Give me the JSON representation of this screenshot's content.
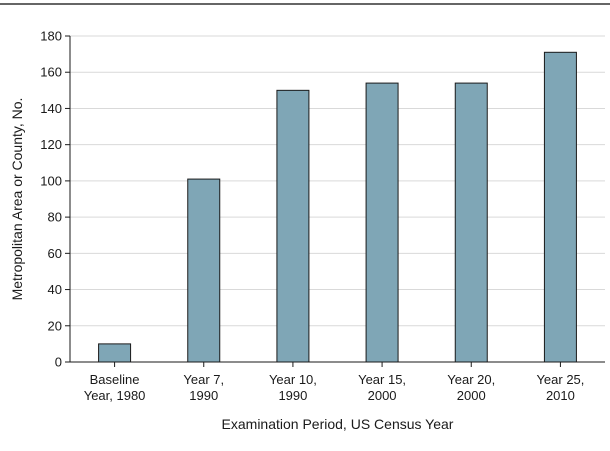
{
  "chart_data": {
    "type": "bar",
    "title": "",
    "xlabel": "Examination Period, US Census Year",
    "ylabel": "Metropolitan Area or County, No.",
    "ylim": [
      0,
      180
    ],
    "yticks": [
      "0",
      "20",
      "40",
      "60",
      "80",
      "100",
      "120",
      "140",
      "160",
      "180"
    ],
    "grid": true,
    "categories": [
      [
        "Baseline",
        "Year, 1980"
      ],
      [
        "Year 7,",
        "1990"
      ],
      [
        "Year 10,",
        "1990"
      ],
      [
        "Year 15,",
        "2000"
      ],
      [
        "Year 20,",
        "2000"
      ],
      [
        "Year 25,",
        "2010"
      ]
    ],
    "values": [
      10,
      101,
      150,
      154,
      154,
      171
    ],
    "colors": {
      "bar": "#7fa6b6",
      "bar_stroke": "#1a1a1a",
      "grid": "#d9d9d9",
      "axis": "#1a1a1a",
      "top_rule": "#333333"
    }
  }
}
